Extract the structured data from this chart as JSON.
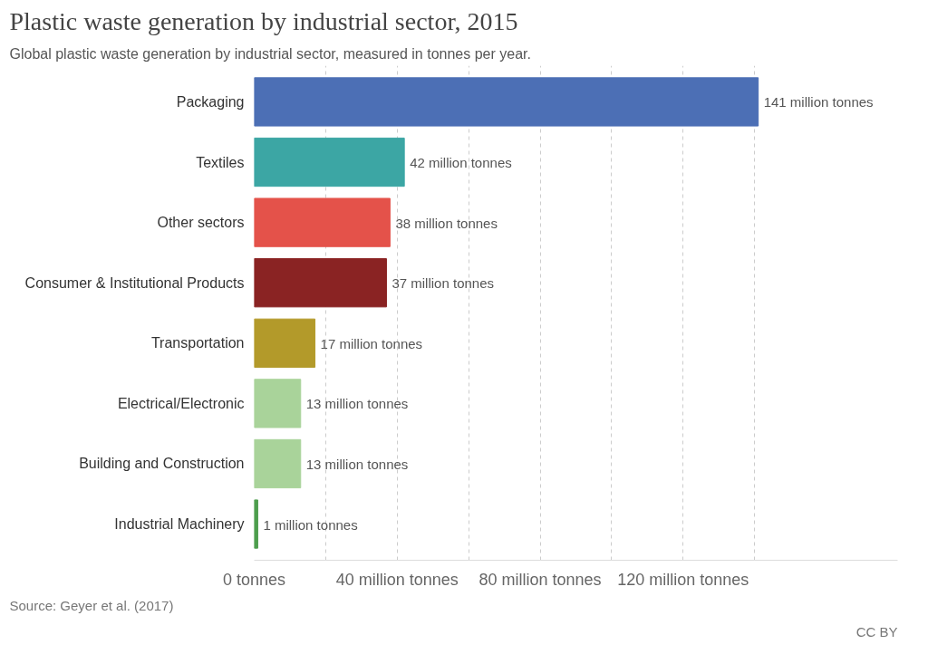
{
  "chart_data": {
    "type": "bar",
    "orientation": "horizontal",
    "title": "Plastic waste generation by industrial sector, 2015",
    "subtitle": "Global plastic waste generation by industrial sector, measured in tonnes per year.",
    "categories": [
      "Packaging",
      "Textiles",
      "Other sectors",
      "Consumer & Institutional Products",
      "Transportation",
      "Electrical/Electronic",
      "Building and Construction",
      "Industrial Machinery"
    ],
    "values": [
      141,
      42,
      38,
      37,
      17,
      13,
      13,
      1
    ],
    "colors": [
      "#4c6fb5",
      "#3ca6a4",
      "#e4524a",
      "#8a2323",
      "#b39a2a",
      "#a9d39a",
      "#a9d39a",
      "#4e9e4e"
    ],
    "value_labels": [
      "141 million tonnes",
      "42 million tonnes",
      "38 million tonnes",
      "37 million tonnes",
      "17 million tonnes",
      "13 million tonnes",
      "13 million tonnes",
      "1 million tonnes"
    ],
    "xlim": [
      0,
      180
    ],
    "xticks": [
      {
        "value": 0,
        "label": "0 tonnes"
      },
      {
        "value": 20,
        "label": null
      },
      {
        "value": 40,
        "label": "40 million tonnes"
      },
      {
        "value": 60,
        "label": null
      },
      {
        "value": 80,
        "label": "80 million tonnes"
      },
      {
        "value": 100,
        "label": null
      },
      {
        "value": 120,
        "label": "120 million tonnes"
      },
      {
        "value": 140,
        "label": null
      }
    ],
    "grid": "x",
    "annotations": [
      "Source: Geyer et al. (2017)",
      "CC BY"
    ]
  }
}
